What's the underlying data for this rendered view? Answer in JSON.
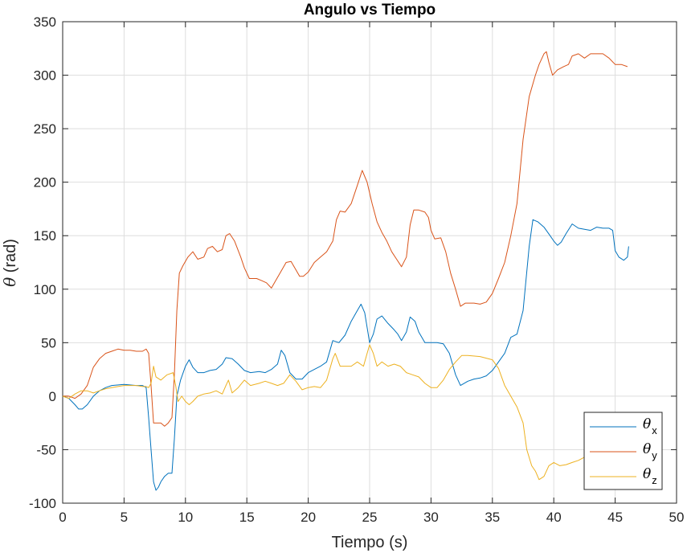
{
  "chart_data": {
    "type": "line",
    "title": "Angulo vs Tiempo",
    "xlabel": "Tiempo (s)",
    "ylabel_symbol": "θ",
    "ylabel_unit": "(rad)",
    "xlim": [
      0,
      50
    ],
    "ylim": [
      -100,
      350
    ],
    "xticks": [
      0,
      5,
      10,
      15,
      20,
      25,
      30,
      35,
      40,
      45,
      50
    ],
    "yticks": [
      -100,
      -50,
      0,
      50,
      100,
      150,
      200,
      250,
      300,
      350
    ],
    "grid": true,
    "legend_position": "bottom-right",
    "series": [
      {
        "name_symbol": "θ",
        "name_sub": "x",
        "color": "#0072BD",
        "points": [
          [
            0,
            0
          ],
          [
            0.5,
            -2
          ],
          [
            1,
            -8
          ],
          [
            1.3,
            -12
          ],
          [
            1.6,
            -12
          ],
          [
            2,
            -8
          ],
          [
            2.5,
            0
          ],
          [
            3,
            5
          ],
          [
            3.5,
            8
          ],
          [
            4,
            10
          ],
          [
            5,
            11
          ],
          [
            6,
            10
          ],
          [
            6.5,
            10
          ],
          [
            6.8,
            8
          ],
          [
            7,
            -20
          ],
          [
            7.2,
            -50
          ],
          [
            7.4,
            -80
          ],
          [
            7.6,
            -88
          ],
          [
            7.8,
            -85
          ],
          [
            8,
            -80
          ],
          [
            8.3,
            -75
          ],
          [
            8.6,
            -72
          ],
          [
            8.9,
            -72
          ],
          [
            9.1,
            -40
          ],
          [
            9.3,
            0
          ],
          [
            9.6,
            15
          ],
          [
            10,
            28
          ],
          [
            10.3,
            34
          ],
          [
            10.6,
            27
          ],
          [
            11,
            22
          ],
          [
            11.5,
            22
          ],
          [
            12,
            24
          ],
          [
            12.5,
            25
          ],
          [
            13,
            30
          ],
          [
            13.3,
            36
          ],
          [
            13.8,
            35
          ],
          [
            14.3,
            30
          ],
          [
            14.8,
            24
          ],
          [
            15.3,
            22
          ],
          [
            16,
            23
          ],
          [
            16.5,
            22
          ],
          [
            17,
            25
          ],
          [
            17.5,
            30
          ],
          [
            17.8,
            43
          ],
          [
            18.1,
            38
          ],
          [
            18.5,
            22
          ],
          [
            19,
            16
          ],
          [
            19.5,
            16
          ],
          [
            20,
            22
          ],
          [
            20.5,
            25
          ],
          [
            21,
            28
          ],
          [
            21.5,
            32
          ],
          [
            22,
            52
          ],
          [
            22.5,
            50
          ],
          [
            23,
            57
          ],
          [
            23.5,
            70
          ],
          [
            24,
            80
          ],
          [
            24.3,
            86
          ],
          [
            24.6,
            78
          ],
          [
            25,
            50
          ],
          [
            25.3,
            58
          ],
          [
            25.6,
            72
          ],
          [
            26,
            75
          ],
          [
            26.5,
            68
          ],
          [
            27,
            62
          ],
          [
            27.3,
            58
          ],
          [
            27.6,
            52
          ],
          [
            28,
            60
          ],
          [
            28.3,
            74
          ],
          [
            28.7,
            70
          ],
          [
            29,
            60
          ],
          [
            29.5,
            50
          ],
          [
            30,
            50
          ],
          [
            30.5,
            50
          ],
          [
            31,
            49
          ],
          [
            31.5,
            40
          ],
          [
            32,
            20
          ],
          [
            32.4,
            10
          ],
          [
            33,
            14
          ],
          [
            33.5,
            16
          ],
          [
            34,
            17
          ],
          [
            34.5,
            19
          ],
          [
            35,
            24
          ],
          [
            35.5,
            32
          ],
          [
            36,
            40
          ],
          [
            36.5,
            55
          ],
          [
            37,
            58
          ],
          [
            37.5,
            80
          ],
          [
            38,
            140
          ],
          [
            38.3,
            165
          ],
          [
            38.7,
            163
          ],
          [
            39.2,
            158
          ],
          [
            39.7,
            150
          ],
          [
            40,
            145
          ],
          [
            40.3,
            141
          ],
          [
            40.6,
            144
          ],
          [
            41,
            152
          ],
          [
            41.5,
            161
          ],
          [
            42,
            157
          ],
          [
            42.5,
            156
          ],
          [
            43,
            155
          ],
          [
            43.5,
            158
          ],
          [
            44,
            157
          ],
          [
            44.5,
            157
          ],
          [
            44.8,
            155
          ],
          [
            45,
            136
          ],
          [
            45.3,
            130
          ],
          [
            45.7,
            127
          ],
          [
            46,
            130
          ],
          [
            46.1,
            140
          ]
        ]
      },
      {
        "name_symbol": "θ",
        "name_sub": "y",
        "color": "#D95319",
        "points": [
          [
            0,
            0
          ],
          [
            0.5,
            0
          ],
          [
            1,
            -2
          ],
          [
            1.5,
            2
          ],
          [
            2,
            10
          ],
          [
            2.5,
            27
          ],
          [
            3,
            35
          ],
          [
            3.5,
            40
          ],
          [
            4,
            42
          ],
          [
            4.5,
            44
          ],
          [
            5,
            43
          ],
          [
            5.5,
            43
          ],
          [
            6,
            42
          ],
          [
            6.5,
            42
          ],
          [
            6.8,
            44
          ],
          [
            7,
            40
          ],
          [
            7.2,
            10
          ],
          [
            7.4,
            -25
          ],
          [
            7.7,
            -25
          ],
          [
            8,
            -25
          ],
          [
            8.3,
            -28
          ],
          [
            8.6,
            -25
          ],
          [
            8.9,
            -20
          ],
          [
            9.1,
            20
          ],
          [
            9.3,
            80
          ],
          [
            9.5,
            115
          ],
          [
            9.8,
            122
          ],
          [
            10.2,
            130
          ],
          [
            10.6,
            135
          ],
          [
            11,
            128
          ],
          [
            11.5,
            130
          ],
          [
            11.8,
            138
          ],
          [
            12.2,
            140
          ],
          [
            12.6,
            135
          ],
          [
            13,
            137
          ],
          [
            13.3,
            150
          ],
          [
            13.6,
            152
          ],
          [
            14,
            145
          ],
          [
            14.5,
            130
          ],
          [
            14.8,
            120
          ],
          [
            15.2,
            110
          ],
          [
            15.8,
            110
          ],
          [
            16.2,
            108
          ],
          [
            16.6,
            106
          ],
          [
            17,
            101
          ],
          [
            17.3,
            107
          ],
          [
            17.7,
            115
          ],
          [
            18.2,
            125
          ],
          [
            18.6,
            126
          ],
          [
            19,
            118
          ],
          [
            19.3,
            112
          ],
          [
            19.6,
            112
          ],
          [
            20,
            116
          ],
          [
            20.5,
            125
          ],
          [
            21,
            130
          ],
          [
            21.5,
            135
          ],
          [
            22,
            145
          ],
          [
            22.3,
            165
          ],
          [
            22.6,
            173
          ],
          [
            23,
            172
          ],
          [
            23.5,
            180
          ],
          [
            24,
            197
          ],
          [
            24.4,
            211
          ],
          [
            24.8,
            200
          ],
          [
            25.2,
            180
          ],
          [
            25.6,
            163
          ],
          [
            26,
            153
          ],
          [
            26.4,
            145
          ],
          [
            26.8,
            135
          ],
          [
            27.2,
            128
          ],
          [
            27.6,
            121
          ],
          [
            28,
            130
          ],
          [
            28.3,
            160
          ],
          [
            28.6,
            174
          ],
          [
            29,
            174
          ],
          [
            29.5,
            172
          ],
          [
            29.8,
            167
          ],
          [
            30,
            155
          ],
          [
            30.3,
            147
          ],
          [
            30.8,
            148
          ],
          [
            31.2,
            135
          ],
          [
            31.6,
            115
          ],
          [
            32,
            100
          ],
          [
            32.4,
            84
          ],
          [
            32.8,
            87
          ],
          [
            33.5,
            87
          ],
          [
            34,
            86
          ],
          [
            34.5,
            88
          ],
          [
            35,
            96
          ],
          [
            35.5,
            110
          ],
          [
            36,
            125
          ],
          [
            36.5,
            150
          ],
          [
            37,
            180
          ],
          [
            37.5,
            240
          ],
          [
            38,
            280
          ],
          [
            38.5,
            300
          ],
          [
            38.8,
            310
          ],
          [
            39.2,
            320
          ],
          [
            39.4,
            322
          ],
          [
            39.6,
            312
          ],
          [
            39.9,
            300
          ],
          [
            40.3,
            305
          ],
          [
            40.8,
            308
          ],
          [
            41.2,
            310
          ],
          [
            41.5,
            318
          ],
          [
            42,
            320
          ],
          [
            42.5,
            316
          ],
          [
            43,
            320
          ],
          [
            43.5,
            320
          ],
          [
            44,
            320
          ],
          [
            44.5,
            316
          ],
          [
            45,
            310
          ],
          [
            45.5,
            310
          ],
          [
            46,
            308
          ]
        ]
      },
      {
        "name_symbol": "θ",
        "name_sub": "z",
        "color": "#EDB120",
        "points": [
          [
            0,
            0
          ],
          [
            0.5,
            -2
          ],
          [
            1,
            2
          ],
          [
            1.5,
            5
          ],
          [
            2,
            5
          ],
          [
            2.5,
            3
          ],
          [
            3,
            5
          ],
          [
            3.5,
            7
          ],
          [
            4,
            8
          ],
          [
            4.5,
            9
          ],
          [
            5,
            10
          ],
          [
            5.5,
            10
          ],
          [
            6,
            10
          ],
          [
            6.5,
            9
          ],
          [
            6.8,
            9
          ],
          [
            7,
            8
          ],
          [
            7.2,
            12
          ],
          [
            7.4,
            28
          ],
          [
            7.6,
            18
          ],
          [
            8,
            15
          ],
          [
            8.5,
            20
          ],
          [
            9,
            22
          ],
          [
            9.2,
            10
          ],
          [
            9.4,
            -5
          ],
          [
            9.7,
            0
          ],
          [
            10,
            -5
          ],
          [
            10.3,
            -8
          ],
          [
            10.6,
            -5
          ],
          [
            11,
            0
          ],
          [
            11.5,
            2
          ],
          [
            12,
            3
          ],
          [
            12.5,
            5
          ],
          [
            13,
            2
          ],
          [
            13.3,
            10
          ],
          [
            13.5,
            15
          ],
          [
            13.8,
            3
          ],
          [
            14.3,
            8
          ],
          [
            14.8,
            15
          ],
          [
            15.3,
            10
          ],
          [
            16,
            12
          ],
          [
            16.5,
            14
          ],
          [
            17,
            12
          ],
          [
            17.5,
            10
          ],
          [
            18,
            12
          ],
          [
            18.5,
            20
          ],
          [
            19,
            14
          ],
          [
            19.5,
            6
          ],
          [
            20,
            8
          ],
          [
            20.5,
            9
          ],
          [
            21,
            8
          ],
          [
            21.5,
            15
          ],
          [
            22,
            35
          ],
          [
            22.2,
            40
          ],
          [
            22.6,
            28
          ],
          [
            23,
            28
          ],
          [
            23.5,
            28
          ],
          [
            24,
            32
          ],
          [
            24.5,
            28
          ],
          [
            24.8,
            40
          ],
          [
            25,
            48
          ],
          [
            25.3,
            40
          ],
          [
            25.6,
            28
          ],
          [
            26,
            32
          ],
          [
            26.5,
            28
          ],
          [
            27,
            30
          ],
          [
            27.5,
            28
          ],
          [
            28,
            22
          ],
          [
            28.5,
            20
          ],
          [
            29,
            18
          ],
          [
            29.5,
            12
          ],
          [
            30,
            8
          ],
          [
            30.5,
            8
          ],
          [
            31,
            15
          ],
          [
            31.5,
            25
          ],
          [
            32,
            32
          ],
          [
            32.5,
            38
          ],
          [
            33,
            38
          ],
          [
            34,
            37
          ],
          [
            35,
            34
          ],
          [
            35.5,
            26
          ],
          [
            36,
            10
          ],
          [
            36.5,
            0
          ],
          [
            37,
            -10
          ],
          [
            37.5,
            -25
          ],
          [
            37.8,
            -50
          ],
          [
            38.2,
            -65
          ],
          [
            38.5,
            -70
          ],
          [
            38.8,
            -78
          ],
          [
            39.2,
            -75
          ],
          [
            39.6,
            -65
          ],
          [
            40,
            -62
          ],
          [
            40.5,
            -65
          ],
          [
            41,
            -64
          ],
          [
            41.5,
            -62
          ],
          [
            42,
            -60
          ],
          [
            42.5,
            -57
          ],
          [
            43,
            -58
          ],
          [
            43.5,
            -57
          ],
          [
            44,
            -57
          ]
        ]
      }
    ]
  }
}
